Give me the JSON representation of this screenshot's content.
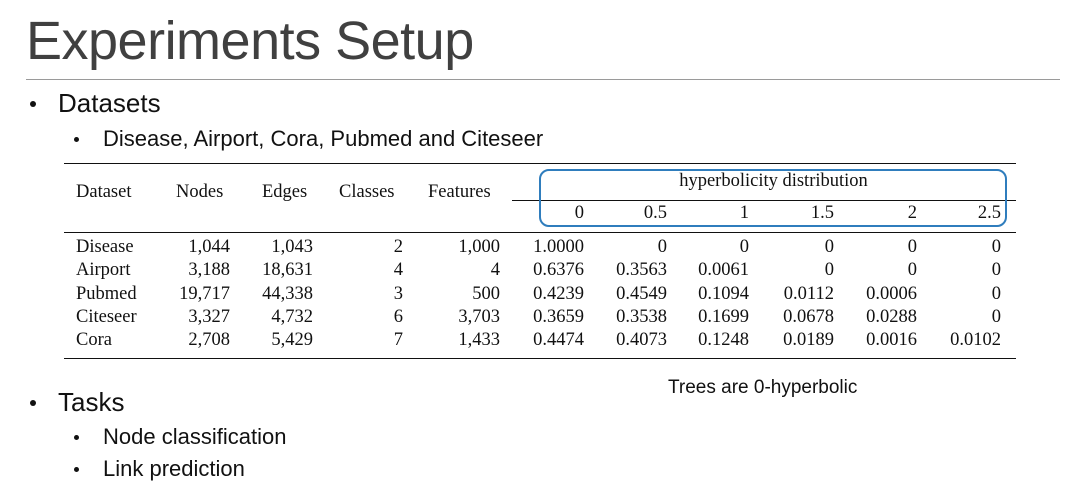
{
  "slide": {
    "title": "Experiments Setup",
    "bullets": {
      "datasets": "Datasets",
      "datasets_sub": "Disease, Airport, Cora, Pubmed and Citeseer",
      "tasks": "Tasks",
      "task_items": [
        "Node classification",
        "Link prediction"
      ]
    },
    "note": "Trees are 0-hyperbolic"
  },
  "table": {
    "headers": [
      "Dataset",
      "Nodes",
      "Edges",
      "Classes",
      "Features"
    ],
    "group_header": "hyperbolicity distribution",
    "sub_headers": [
      "0",
      "0.5",
      "1",
      "1.5",
      "2",
      "2.5"
    ],
    "rows": [
      [
        "Disease",
        "1,044",
        "1,043",
        "2",
        "1,000",
        "1.0000",
        "0",
        "0",
        "0",
        "0",
        "0"
      ],
      [
        "Airport",
        "3,188",
        "18,631",
        "4",
        "4",
        "0.6376",
        "0.3563",
        "0.0061",
        "0",
        "0",
        "0"
      ],
      [
        "Pubmed",
        "19,717",
        "44,338",
        "3",
        "500",
        "0.4239",
        "0.4549",
        "0.1094",
        "0.0112",
        "0.0006",
        "0"
      ],
      [
        "Citeseer",
        "3,327",
        "4,732",
        "6",
        "3,703",
        "0.3659",
        "0.3538",
        "0.1699",
        "0.0678",
        "0.0288",
        "0"
      ],
      [
        "Cora",
        "2,708",
        "5,429",
        "7",
        "1,433",
        "0.4474",
        "0.4073",
        "0.1248",
        "0.0189",
        "0.0016",
        "0.0102"
      ]
    ]
  },
  "colors": {
    "highlight_box": "#2f7dbd",
    "title_text": "#404040"
  }
}
